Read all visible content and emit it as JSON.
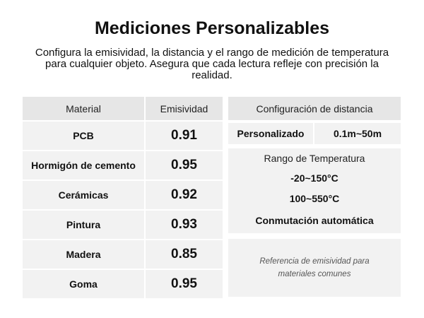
{
  "header": {
    "title": "Mediciones Personalizables",
    "subtitle": "Configura la emisividad, la distancia y el rango de medición de temperatura para cualquier objeto. Asegura que cada lectura refleje con precisión la realidad."
  },
  "table": {
    "columns": [
      "Material",
      "Emisividad"
    ],
    "rows": [
      [
        "PCB",
        "0.91"
      ],
      [
        "Hormigón de cemento",
        "0.95"
      ],
      [
        "Cerámicas",
        "0.92"
      ],
      [
        "Pintura",
        "0.93"
      ],
      [
        "Madera",
        "0.85"
      ],
      [
        "Goma",
        "0.95"
      ]
    ]
  },
  "distance": {
    "title": "Configuración de distancia",
    "label": "Personalizado",
    "value": "0.1m~50m"
  },
  "temperature": {
    "title": "Rango de Temperatura",
    "ranges": [
      "-20~150°C",
      "100~550°C"
    ],
    "switching": "Conmutación automática"
  },
  "note": "Referencia de emisividad para materiales comunes"
}
